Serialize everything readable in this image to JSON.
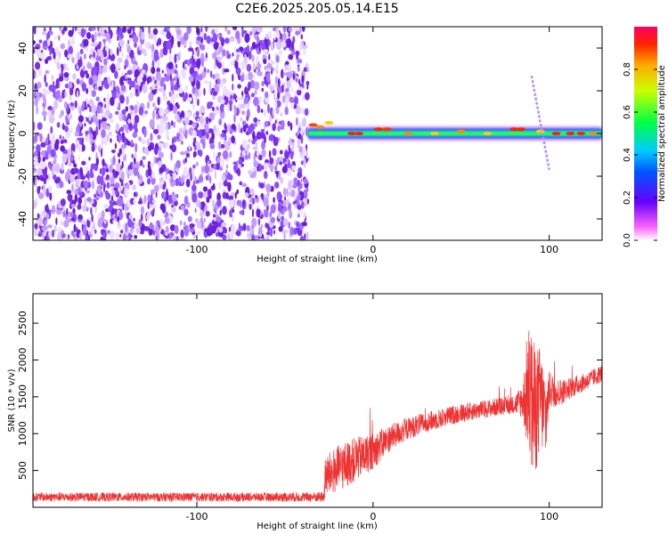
{
  "title": "C2E6.2025.205.05.14.E15",
  "chart_data": [
    {
      "type": "heatmap",
      "xlabel": "Height of straight line (km)",
      "ylabel": "Frequency (Hz)",
      "xlim": [
        -193,
        130
      ],
      "ylim": [
        -50,
        50
      ],
      "xticks": [
        -100,
        0,
        100
      ],
      "yticks": [
        -40,
        -20,
        0,
        20,
        40
      ],
      "colorbar": {
        "label": "Normalized spectral amplitude",
        "range": [
          0,
          1
        ],
        "ticks": [
          0.0,
          0.2,
          0.4,
          0.6,
          0.8
        ]
      },
      "features": {
        "noise_region_x": [
          -193,
          -37
        ],
        "ridge_x": [
          -37,
          130
        ],
        "ridge_frequency": 0,
        "chirp_x": [
          90,
          100
        ],
        "chirp_frequency_range": [
          27,
          -17
        ]
      }
    },
    {
      "type": "line",
      "xlabel": "Height of straight line (km)",
      "ylabel": "SNR (10 * v/v)",
      "xlim": [
        -193,
        130
      ],
      "ylim": [
        0,
        2900
      ],
      "xticks": [
        -100,
        0,
        100
      ],
      "yticks": [
        500,
        1000,
        1500,
        2000,
        2500
      ],
      "color": "#ee3333",
      "envelope": {
        "x": [
          -193,
          -130,
          -60,
          -28,
          -27,
          -20,
          -10,
          0,
          10,
          20,
          30,
          40,
          50,
          60,
          70,
          80,
          85,
          88,
          90,
          92,
          95,
          98,
          100,
          105,
          110,
          120,
          130
        ],
        "mean": [
          140,
          140,
          140,
          140,
          420,
          520,
          650,
          760,
          950,
          1070,
          1150,
          1220,
          1280,
          1320,
          1360,
          1390,
          1450,
          1600,
          1400,
          1300,
          1500,
          1200,
          1600,
          1550,
          1600,
          1700,
          1820
        ],
        "spread": [
          60,
          60,
          60,
          70,
          280,
          320,
          300,
          250,
          180,
          150,
          140,
          130,
          130,
          120,
          120,
          120,
          250,
          900,
          1000,
          900,
          700,
          600,
          250,
          200,
          150,
          120,
          120
        ]
      }
    }
  ]
}
